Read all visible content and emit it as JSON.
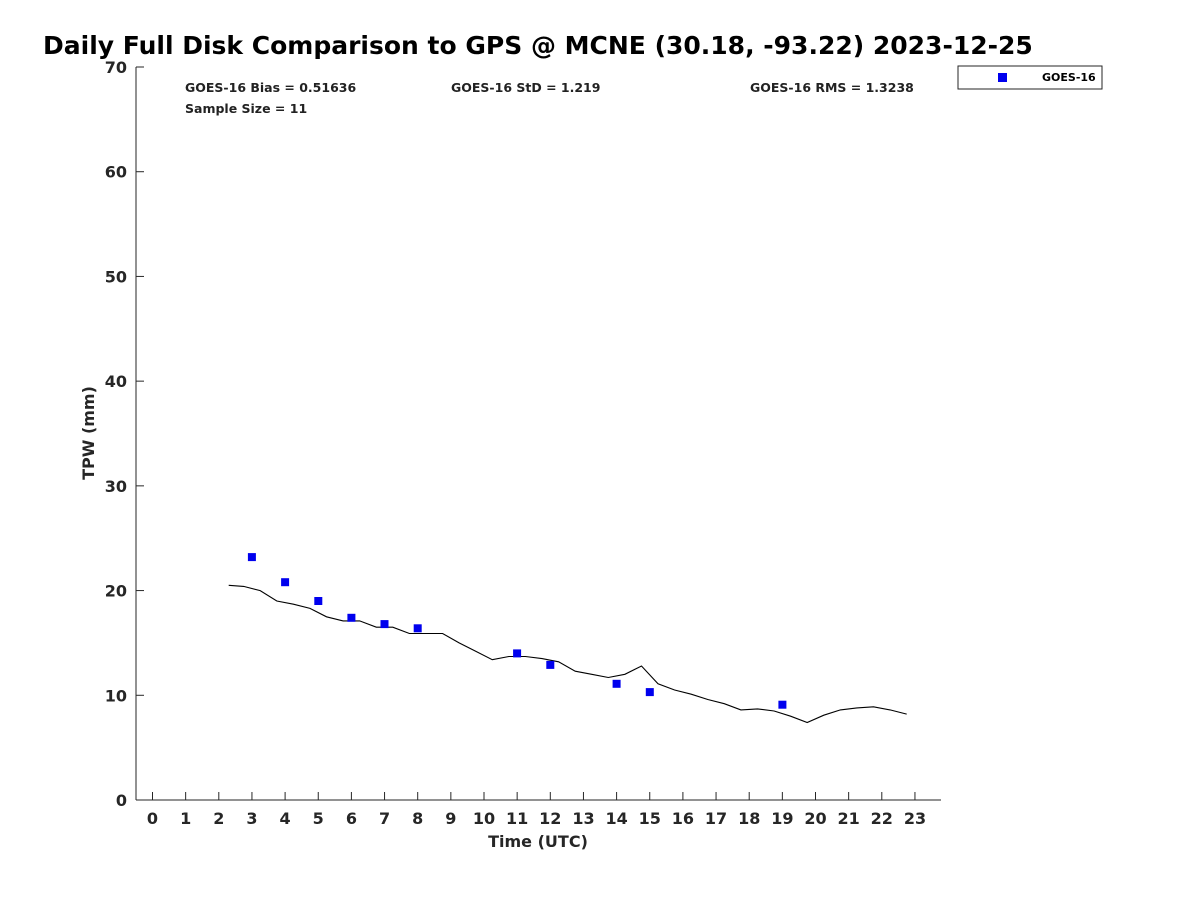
{
  "chart_data": {
    "type": "scatter",
    "title": "Daily Full Disk Comparison to GPS @ MCNE (30.18, -93.22) 2023-12-25",
    "xlabel": "Time (UTC)",
    "ylabel": "TPW (mm)",
    "xlim": [
      -0.5,
      23.8
    ],
    "ylim": [
      0,
      70
    ],
    "xticks": [
      "0",
      "1",
      "2",
      "3",
      "4",
      "5",
      "6",
      "7",
      "8",
      "9",
      "10",
      "11",
      "12",
      "13",
      "14",
      "15",
      "16",
      "17",
      "18",
      "19",
      "20",
      "21",
      "22",
      "23"
    ],
    "yticks": [
      "0",
      "10",
      "20",
      "30",
      "40",
      "50",
      "60",
      "70"
    ],
    "grid": false,
    "legend_position": "top-right",
    "stats": {
      "bias": "GOES-16 Bias = 0.51636",
      "sample_size": "Sample Size = 11",
      "std": "GOES-16 StD = 1.219",
      "rms": "GOES-16 RMS = 1.3238"
    },
    "series": [
      {
        "name": "GOES-16",
        "kind": "scatter",
        "marker": "square",
        "color": "#0000ee",
        "x": [
          3,
          4,
          5,
          6,
          7,
          8,
          11,
          12,
          14,
          15,
          19
        ],
        "y": [
          23.2,
          20.8,
          19.0,
          17.4,
          16.8,
          16.4,
          14.0,
          12.9,
          11.1,
          10.3,
          9.1
        ]
      },
      {
        "kind": "line",
        "color": "#000000",
        "x": [
          2.3,
          2.75,
          3.25,
          3.75,
          4.25,
          4.75,
          5.25,
          5.75,
          6.25,
          6.75,
          7.25,
          7.75,
          8.25,
          8.75,
          9.25,
          9.75,
          10.25,
          10.75,
          11.25,
          11.75,
          12.25,
          12.75,
          13.25,
          13.75,
          14.25,
          14.75,
          15.25,
          15.75,
          16.25,
          16.75,
          17.25,
          17.75,
          18.25,
          18.75,
          19.25,
          19.75,
          20.25,
          20.75,
          21.25,
          21.75,
          22.25,
          22.75
        ],
        "y": [
          20.5,
          20.4,
          20.0,
          19.0,
          18.7,
          18.3,
          17.5,
          17.1,
          17.1,
          16.5,
          16.5,
          15.9,
          15.9,
          15.9,
          15.0,
          14.2,
          13.4,
          13.7,
          13.7,
          13.5,
          13.2,
          12.3,
          12.0,
          11.7,
          12.0,
          12.8,
          11.1,
          10.5,
          10.1,
          9.6,
          9.2,
          8.6,
          8.7,
          8.5,
          8.0,
          7.4,
          8.1,
          8.6,
          8.8,
          8.9,
          8.6,
          8.2
        ]
      }
    ]
  }
}
